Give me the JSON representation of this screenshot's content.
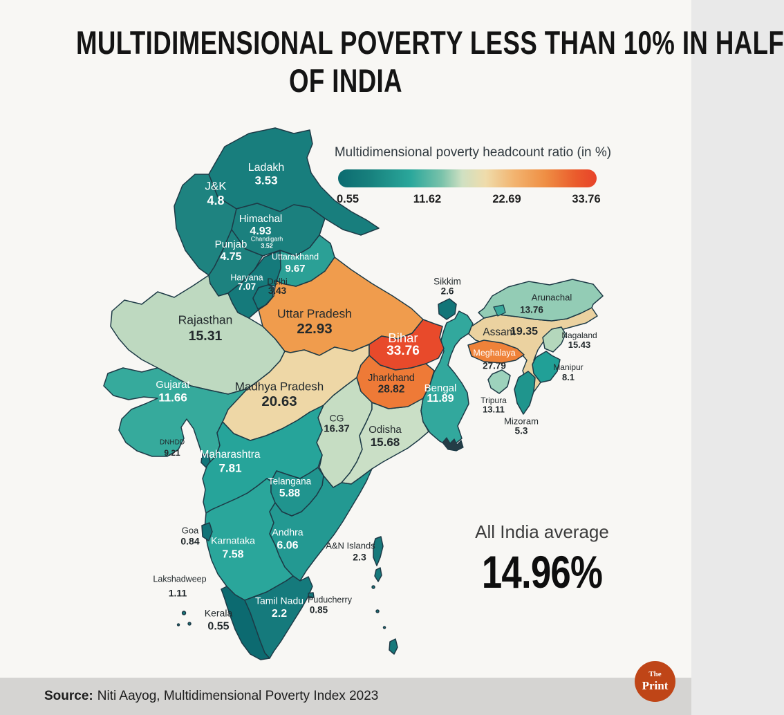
{
  "title": {
    "line1": "MULTIDIMENSIONAL POVERTY LESS THAN 10% IN HALF",
    "line2": "OF INDIA"
  },
  "legend": {
    "title": "Multidimensional poverty headcount ratio (in %)",
    "ticks": [
      "0.55",
      "11.62",
      "22.69",
      "33.76"
    ],
    "gradient": [
      "#0c6b70 0%",
      "#17807d 12%",
      "#2aa79b 28%",
      "#79c2aa 40%",
      "#cfe0c2 48%",
      "#efdcab 57%",
      "#f2b470 68%",
      "#ef8f44 80%",
      "#ea5b2c 92%",
      "#e8432a 100%"
    ]
  },
  "average": {
    "label": "All India average",
    "value": "14.96%"
  },
  "source": {
    "label": "Source:",
    "text": "Niti Aayog, Multidimensional Poverty Index 2023"
  },
  "logo": {
    "the": "The",
    "print": "Print",
    "color": "#bf4517"
  },
  "colors": {
    "background": "#f8f7f4",
    "source_bar": "#d5d4d2",
    "border": "#1d3a46"
  },
  "chart_data": {
    "type": "heatmap",
    "subtype": "choropleth-map-of-india",
    "title": "Multidimensional poverty headcount ratio (in %)",
    "colorbar": {
      "min": 0.55,
      "max": 33.76,
      "ticks": [
        0.55,
        11.62,
        22.69,
        33.76
      ]
    },
    "all_india_average": 14.96,
    "states": [
      {
        "id": "rajasthan",
        "name": "Rajasthan",
        "value": "15.31",
        "color": "#bed9c0",
        "text": "dark"
      },
      {
        "id": "up",
        "name": "Uttar Pradesh",
        "value": "22.93",
        "color": "#f09c4d",
        "text": "dark"
      },
      {
        "id": "mp",
        "name": "Madhya Pradesh",
        "value": "20.63",
        "color": "#eed7a6",
        "text": "dark"
      },
      {
        "id": "cg",
        "name": "CG",
        "value": "16.37",
        "color": "#c6ddc3",
        "text": "dark"
      },
      {
        "id": "odisha",
        "name": "Odisha",
        "value": "15.68",
        "color": "#cadfc6",
        "text": "dark"
      },
      {
        "id": "gujarat",
        "name": "Gujarat",
        "value": "11.66",
        "color": "#36aa9c",
        "text": "light"
      },
      {
        "id": "maharashtra",
        "name": "Maharashtra",
        "value": "7.81",
        "color": "#26a49a",
        "text": "light"
      },
      {
        "id": "karnataka",
        "name": "Karnataka",
        "value": "7.58",
        "color": "#2aa69b",
        "text": "light"
      },
      {
        "id": "andhra",
        "name": "Andhra",
        "value": "6.06",
        "color": "#239992",
        "text": "light"
      },
      {
        "id": "telangana",
        "name": "Telangana",
        "value": "5.88",
        "color": "#20948e",
        "text": "light"
      },
      {
        "id": "bengal",
        "name": "Bengal",
        "value": "11.89",
        "color": "#32a89d",
        "text": "light"
      },
      {
        "id": "assam",
        "name": "Assam",
        "value": "19.35",
        "color": "#ebd2a0",
        "text": "dark"
      },
      {
        "id": "arunachal",
        "name": "Arunachal",
        "value": "13.76",
        "color": "#93ccb5",
        "text": "dark"
      },
      {
        "id": "nagaland",
        "name": "Nagaland",
        "value": "15.43",
        "color": "#b4d7bc",
        "text": "dark"
      },
      {
        "id": "manipur",
        "name": "Manipur",
        "value": "8.1",
        "color": "#21a097",
        "text": "dark"
      },
      {
        "id": "tripura",
        "name": "Tripura",
        "value": "13.11",
        "color": "#9dd2bc",
        "text": "dark"
      },
      {
        "id": "mizoram",
        "name": "Mizoram",
        "value": "5.3",
        "color": "#1f958d",
        "text": "dark"
      },
      {
        "id": "meghalaya",
        "name": "Meghalaya",
        "value": "27.79",
        "color": "#ef8239",
        "text": "light",
        "vtext": "dark"
      },
      {
        "id": "bihar",
        "name": "Bihar",
        "value": "33.76",
        "color": "#e84a2b",
        "text": "light"
      },
      {
        "id": "jharkhand",
        "name": "Jharkhand",
        "value": "28.82",
        "color": "#ee7a37",
        "text": "dark"
      },
      {
        "id": "ladakh",
        "name": "Ladakh",
        "value": "3.53",
        "color": "#187e7d",
        "text": "light"
      },
      {
        "id": "jk",
        "name": "J&K",
        "value": "4.8",
        "color": "#1e8380",
        "text": "light"
      },
      {
        "id": "himachal",
        "name": "Himachal",
        "value": "4.93",
        "color": "#1b807e",
        "text": "light"
      },
      {
        "id": "chandigarh",
        "name": "Chandigarh",
        "value": "3.52",
        "color": "#127578",
        "text": "light"
      },
      {
        "id": "punjab",
        "name": "Punjab",
        "value": "4.75",
        "color": "#1d827f",
        "text": "light"
      },
      {
        "id": "uttarakhand",
        "name": "Uttarakhand",
        "value": "9.67",
        "color": "#2ba096",
        "text": "light"
      },
      {
        "id": "haryana",
        "name": "Haryana",
        "value": "7.07",
        "color": "#157a7b",
        "text": "light"
      },
      {
        "id": "delhi",
        "name": "Delhi",
        "value": "3.43",
        "color": "#167b7c",
        "text": "dark"
      },
      {
        "id": "sikkim",
        "name": "Sikkim",
        "value": "2.6",
        "color": "#127578",
        "text": "dark"
      },
      {
        "id": "goa",
        "name": "Goa",
        "value": "0.84",
        "color": "#117377",
        "text": "dark"
      },
      {
        "id": "dnhdd",
        "name": "DNHDD",
        "value": "9.21",
        "color": "#127579",
        "text": "dark"
      },
      {
        "id": "kerala",
        "name": "Kerala",
        "value": "0.55",
        "color": "#0c6a70",
        "text": "dark"
      },
      {
        "id": "tamil_nadu",
        "name": "Tamil Nadu",
        "value": "2.2",
        "color": "#157a7c",
        "text": "light"
      },
      {
        "id": "puducherry",
        "name": "Puducherry",
        "value": "0.85",
        "color": "#15787a",
        "text": "dark"
      },
      {
        "id": "an_islands",
        "name": "A&N Islands",
        "value": "2.3",
        "color": "#17797b",
        "text": "dark"
      },
      {
        "id": "lakshadweep",
        "name": "Lakshadweep",
        "value": "1.11",
        "color": "#17797b",
        "text": "dark"
      }
    ]
  }
}
